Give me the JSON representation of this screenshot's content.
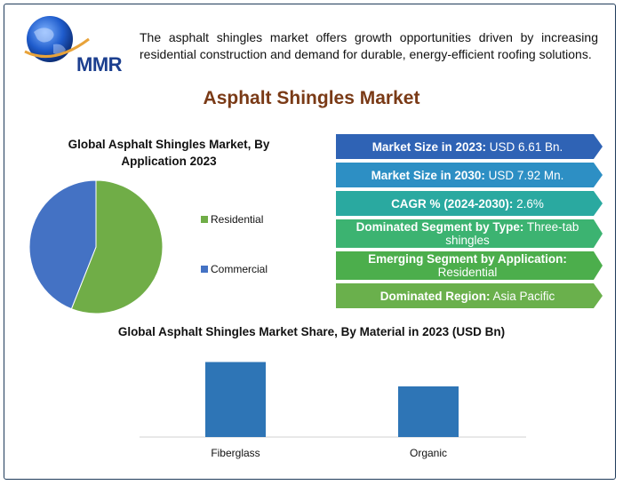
{
  "logo": {
    "text": "MMR"
  },
  "intro": "The asphalt shingles market offers growth opportunities driven by increasing residential construction and demand for durable, energy-efficient roofing solutions.",
  "title": "Asphalt Shingles Market",
  "highlights": [
    {
      "label": "Market Size in 2023:",
      "value": "USD 6.61 Bn.",
      "color": "#2f63b5"
    },
    {
      "label": "Market Size in 2030:",
      "value": "USD 7.92 Mn.",
      "color": "#2d8fc4"
    },
    {
      "label": "CAGR % (2024-2030):",
      "value": "2.6%",
      "color": "#2aa9a0"
    },
    {
      "label": "Dominated Segment by Type:",
      "value": "Three-tab shingles",
      "color": "#3cb371"
    },
    {
      "label": "Emerging Segment by Application:",
      "value": "Residential",
      "color": "#4cae4c"
    },
    {
      "label": "Dominated Region:",
      "value": "Asia Pacific",
      "color": "#6ab04c"
    }
  ],
  "chart_data": [
    {
      "type": "pie",
      "title": "Global Asphalt Shingles Market, By Application 2023",
      "labels": [
        "Residential",
        "Commercial"
      ],
      "values": [
        56,
        44
      ],
      "colors": [
        "#70ad47",
        "#4472c4"
      ],
      "legend": "right"
    },
    {
      "type": "bar",
      "title": "Global Asphalt Shingles Market Share, By Material in 2023 (USD Bn)",
      "categories": [
        "Fiberglass",
        "Organic"
      ],
      "values": [
        4.0,
        2.7
      ],
      "ylim": [
        0,
        4.5
      ],
      "color": "#2e75b6",
      "grid": false
    }
  ]
}
